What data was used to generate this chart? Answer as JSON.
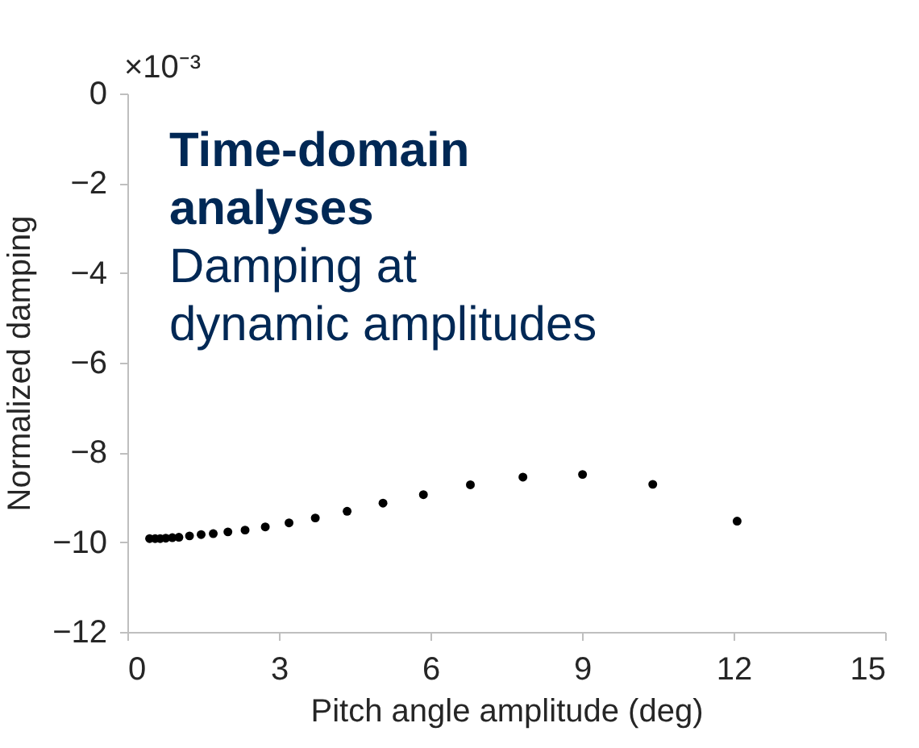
{
  "chart_data": {
    "type": "scatter",
    "title": "Time-domain analyses",
    "subtitle": "Damping at dynamic amplitudes",
    "xlabel": "Pitch angle amplitude (deg)",
    "ylabel": "Normalized damping",
    "annotations": [
      "×10⁻³"
    ],
    "x": [
      0.44,
      0.55,
      0.65,
      0.76,
      0.89,
      1.02,
      1.23,
      1.46,
      1.7,
      1.99,
      2.33,
      2.73,
      3.2,
      3.72,
      4.35,
      5.06,
      5.86,
      6.79,
      7.83,
      9.01,
      10.4,
      12.07
    ],
    "series": [
      {
        "color": "#000000",
        "values": [
          -9.92,
          -9.92,
          -9.92,
          -9.91,
          -9.9,
          -9.89,
          -9.86,
          -9.83,
          -9.81,
          -9.77,
          -9.73,
          -9.66,
          -9.57,
          -9.46,
          -9.31,
          -9.13,
          -8.94,
          -8.72,
          -8.55,
          -8.49,
          -8.71,
          -9.53
        ]
      }
    ],
    "xlim": [
      0,
      15
    ],
    "xticks": [
      0,
      3,
      6,
      9,
      12,
      15
    ],
    "ylim": [
      -12,
      0
    ],
    "yticks": [
      -12,
      -10,
      -8,
      -6,
      -4,
      -2,
      0
    ],
    "grid": false,
    "legend": false,
    "marker": "circle"
  }
}
